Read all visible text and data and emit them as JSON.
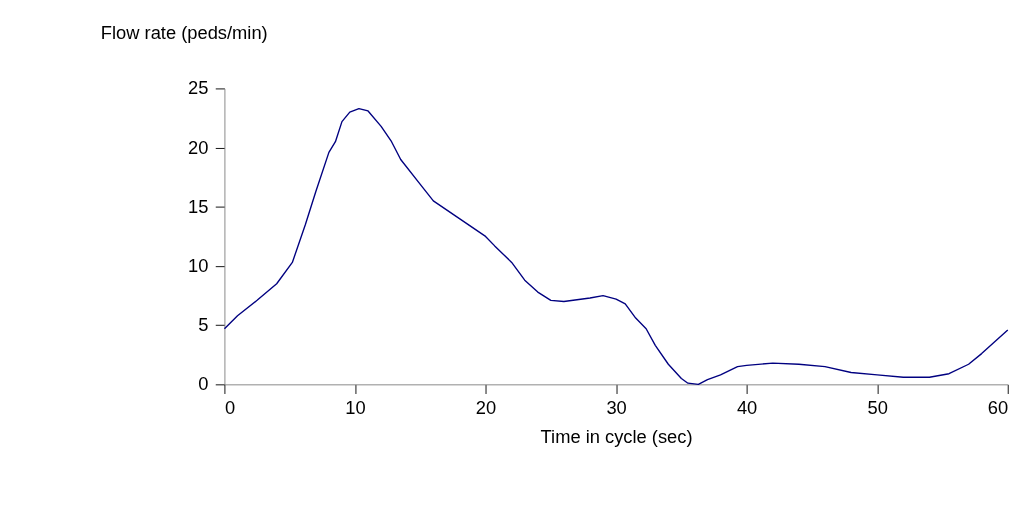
{
  "chart_data": {
    "type": "line",
    "xlabel": "Time in cycle (sec)",
    "ylabel": "Flow rate (peds/min)",
    "x": [
      0,
      1,
      2.5,
      4,
      5.2,
      6.2,
      7,
      8,
      8.5,
      9,
      9.6,
      10.3,
      11,
      12,
      12.8,
      13.5,
      15,
      16,
      18,
      20,
      20.7,
      22,
      23,
      24,
      25,
      26,
      28,
      29,
      30,
      30.7,
      31.5,
      32.3,
      33,
      34,
      35,
      35.5,
      36.3,
      37,
      38,
      39.3,
      40,
      42,
      44,
      46,
      48,
      50,
      52,
      54,
      55.5,
      57,
      58,
      59,
      60
    ],
    "series": [
      {
        "color": "#000080",
        "values": [
          4.7,
          5.8,
          7.1,
          8.5,
          10.3,
          13.5,
          16.3,
          19.6,
          20.5,
          22.2,
          23.0,
          23.3,
          23.1,
          21.8,
          20.5,
          19.0,
          16.9,
          15.5,
          14.0,
          12.5,
          11.7,
          10.3,
          8.8,
          7.8,
          7.1,
          7.0,
          7.3,
          7.5,
          7.2,
          6.8,
          5.6,
          4.7,
          3.3,
          1.7,
          0.5,
          0.1,
          0,
          0.4,
          0.8,
          1.5,
          1.6,
          1.8,
          1.7,
          1.5,
          1.0,
          0.8,
          0.6,
          0.6,
          0.9,
          1.7,
          2.6,
          3.6,
          4.6
        ]
      }
    ],
    "xlim": [
      0,
      60
    ],
    "xticks": [
      0,
      10,
      20,
      30,
      40,
      50,
      60
    ],
    "ylim": [
      0,
      25
    ],
    "yticks": [
      0,
      5,
      10,
      15,
      20,
      25
    ],
    "grid": false,
    "marker": "none",
    "line_style": "solid"
  }
}
